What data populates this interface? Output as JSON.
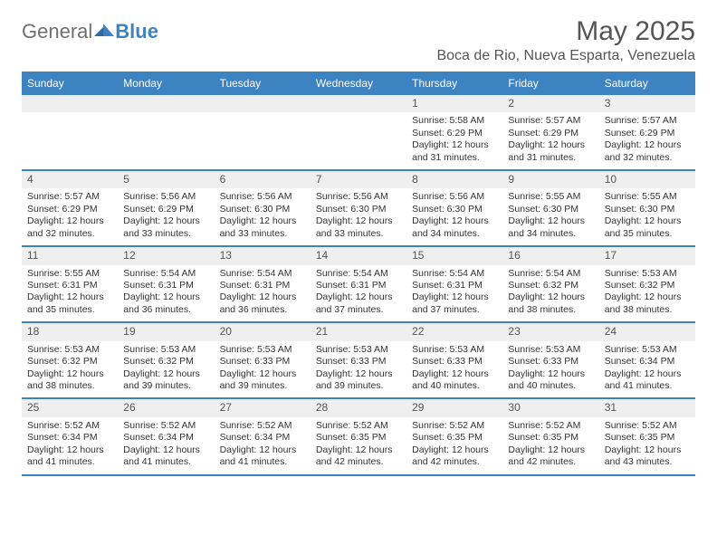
{
  "brand": {
    "general": "General",
    "blue": "Blue"
  },
  "title": "May 2025",
  "location": "Boca de Rio, Nueva Esparta, Venezuela",
  "colors": {
    "accent": "#3d83c2",
    "header_bg": "#3d83c2",
    "daynum_bg": "#efefef",
    "text": "#333333",
    "muted": "#555555"
  },
  "days_of_week": [
    "Sunday",
    "Monday",
    "Tuesday",
    "Wednesday",
    "Thursday",
    "Friday",
    "Saturday"
  ],
  "weeks": [
    [
      null,
      null,
      null,
      null,
      {
        "n": "1",
        "sr": "5:58 AM",
        "ss": "6:29 PM",
        "dl": "12 hours and 31 minutes."
      },
      {
        "n": "2",
        "sr": "5:57 AM",
        "ss": "6:29 PM",
        "dl": "12 hours and 31 minutes."
      },
      {
        "n": "3",
        "sr": "5:57 AM",
        "ss": "6:29 PM",
        "dl": "12 hours and 32 minutes."
      }
    ],
    [
      {
        "n": "4",
        "sr": "5:57 AM",
        "ss": "6:29 PM",
        "dl": "12 hours and 32 minutes."
      },
      {
        "n": "5",
        "sr": "5:56 AM",
        "ss": "6:29 PM",
        "dl": "12 hours and 33 minutes."
      },
      {
        "n": "6",
        "sr": "5:56 AM",
        "ss": "6:30 PM",
        "dl": "12 hours and 33 minutes."
      },
      {
        "n": "7",
        "sr": "5:56 AM",
        "ss": "6:30 PM",
        "dl": "12 hours and 33 minutes."
      },
      {
        "n": "8",
        "sr": "5:56 AM",
        "ss": "6:30 PM",
        "dl": "12 hours and 34 minutes."
      },
      {
        "n": "9",
        "sr": "5:55 AM",
        "ss": "6:30 PM",
        "dl": "12 hours and 34 minutes."
      },
      {
        "n": "10",
        "sr": "5:55 AM",
        "ss": "6:30 PM",
        "dl": "12 hours and 35 minutes."
      }
    ],
    [
      {
        "n": "11",
        "sr": "5:55 AM",
        "ss": "6:31 PM",
        "dl": "12 hours and 35 minutes."
      },
      {
        "n": "12",
        "sr": "5:54 AM",
        "ss": "6:31 PM",
        "dl": "12 hours and 36 minutes."
      },
      {
        "n": "13",
        "sr": "5:54 AM",
        "ss": "6:31 PM",
        "dl": "12 hours and 36 minutes."
      },
      {
        "n": "14",
        "sr": "5:54 AM",
        "ss": "6:31 PM",
        "dl": "12 hours and 37 minutes."
      },
      {
        "n": "15",
        "sr": "5:54 AM",
        "ss": "6:31 PM",
        "dl": "12 hours and 37 minutes."
      },
      {
        "n": "16",
        "sr": "5:54 AM",
        "ss": "6:32 PM",
        "dl": "12 hours and 38 minutes."
      },
      {
        "n": "17",
        "sr": "5:53 AM",
        "ss": "6:32 PM",
        "dl": "12 hours and 38 minutes."
      }
    ],
    [
      {
        "n": "18",
        "sr": "5:53 AM",
        "ss": "6:32 PM",
        "dl": "12 hours and 38 minutes."
      },
      {
        "n": "19",
        "sr": "5:53 AM",
        "ss": "6:32 PM",
        "dl": "12 hours and 39 minutes."
      },
      {
        "n": "20",
        "sr": "5:53 AM",
        "ss": "6:33 PM",
        "dl": "12 hours and 39 minutes."
      },
      {
        "n": "21",
        "sr": "5:53 AM",
        "ss": "6:33 PM",
        "dl": "12 hours and 39 minutes."
      },
      {
        "n": "22",
        "sr": "5:53 AM",
        "ss": "6:33 PM",
        "dl": "12 hours and 40 minutes."
      },
      {
        "n": "23",
        "sr": "5:53 AM",
        "ss": "6:33 PM",
        "dl": "12 hours and 40 minutes."
      },
      {
        "n": "24",
        "sr": "5:53 AM",
        "ss": "6:34 PM",
        "dl": "12 hours and 41 minutes."
      }
    ],
    [
      {
        "n": "25",
        "sr": "5:52 AM",
        "ss": "6:34 PM",
        "dl": "12 hours and 41 minutes."
      },
      {
        "n": "26",
        "sr": "5:52 AM",
        "ss": "6:34 PM",
        "dl": "12 hours and 41 minutes."
      },
      {
        "n": "27",
        "sr": "5:52 AM",
        "ss": "6:34 PM",
        "dl": "12 hours and 41 minutes."
      },
      {
        "n": "28",
        "sr": "5:52 AM",
        "ss": "6:35 PM",
        "dl": "12 hours and 42 minutes."
      },
      {
        "n": "29",
        "sr": "5:52 AM",
        "ss": "6:35 PM",
        "dl": "12 hours and 42 minutes."
      },
      {
        "n": "30",
        "sr": "5:52 AM",
        "ss": "6:35 PM",
        "dl": "12 hours and 42 minutes."
      },
      {
        "n": "31",
        "sr": "5:52 AM",
        "ss": "6:35 PM",
        "dl": "12 hours and 43 minutes."
      }
    ]
  ],
  "labels": {
    "sunrise": "Sunrise:",
    "sunset": "Sunset:",
    "daylight": "Daylight:"
  }
}
